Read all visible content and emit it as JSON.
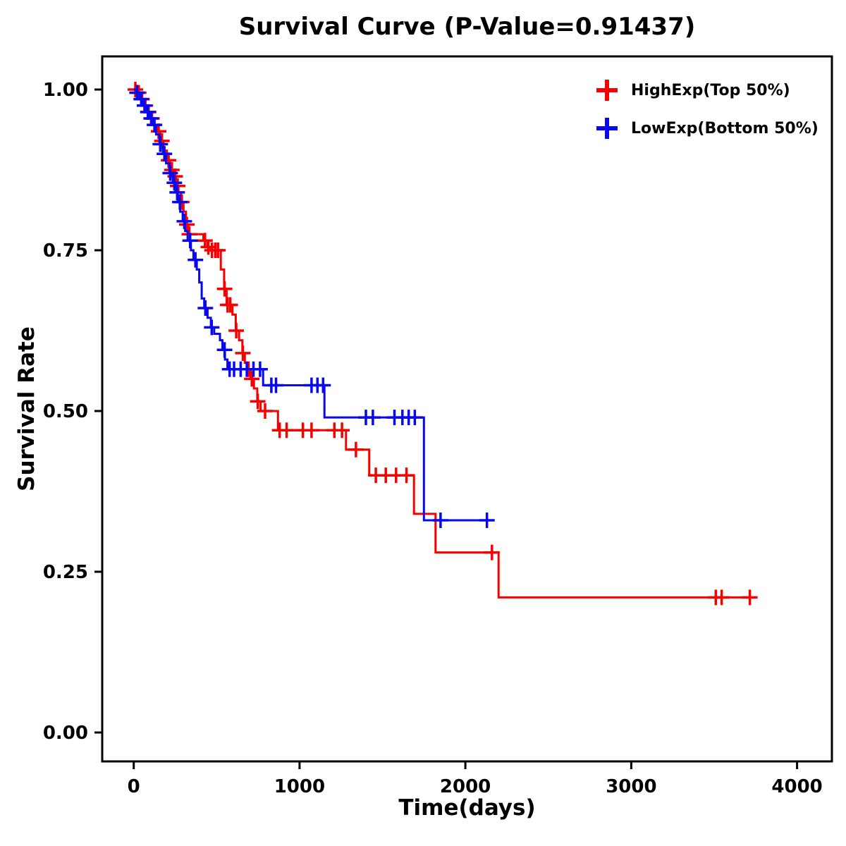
{
  "chart_data": {
    "type": "line",
    "subtype": "kaplan_meier_step",
    "title": "Survival Curve (P-Value=0.91437)",
    "xlabel": "Time(days)",
    "ylabel": "Survival Rate",
    "xlim": [
      -190,
      4210
    ],
    "ylim": [
      -0.045,
      1.0515
    ],
    "grid": false,
    "legend_position": "top-right",
    "xticks": [
      {
        "v": 0,
        "label": "0"
      },
      {
        "v": 1000,
        "label": "1000"
      },
      {
        "v": 2000,
        "label": "2000"
      },
      {
        "v": 3000,
        "label": "3000"
      },
      {
        "v": 4000,
        "label": "4000"
      }
    ],
    "yticks": [
      {
        "v": 0.0,
        "label": "0.00"
      },
      {
        "v": 0.25,
        "label": "0.25"
      },
      {
        "v": 0.5,
        "label": "0.50"
      },
      {
        "v": 0.75,
        "label": "0.75"
      },
      {
        "v": 1.0,
        "label": "1.00"
      }
    ],
    "series": [
      {
        "name": "HighExp(Top 50%)",
        "color": "#f80000",
        "end_time": 3720,
        "steps": [
          [
            0,
            1.0
          ],
          [
            20,
            0.995
          ],
          [
            40,
            0.985
          ],
          [
            60,
            0.975
          ],
          [
            80,
            0.965
          ],
          [
            100,
            0.955
          ],
          [
            120,
            0.945
          ],
          [
            140,
            0.935
          ],
          [
            160,
            0.92
          ],
          [
            180,
            0.905
          ],
          [
            200,
            0.89
          ],
          [
            220,
            0.875
          ],
          [
            240,
            0.865
          ],
          [
            255,
            0.85
          ],
          [
            270,
            0.84
          ],
          [
            285,
            0.825
          ],
          [
            300,
            0.81
          ],
          [
            315,
            0.79
          ],
          [
            330,
            0.775
          ],
          [
            420,
            0.765
          ],
          [
            445,
            0.755
          ],
          [
            465,
            0.75
          ],
          [
            525,
            0.72
          ],
          [
            545,
            0.69
          ],
          [
            560,
            0.665
          ],
          [
            595,
            0.65
          ],
          [
            615,
            0.625
          ],
          [
            635,
            0.61
          ],
          [
            655,
            0.59
          ],
          [
            670,
            0.575
          ],
          [
            690,
            0.565
          ],
          [
            705,
            0.55
          ],
          [
            725,
            0.535
          ],
          [
            745,
            0.515
          ],
          [
            765,
            0.5
          ],
          [
            870,
            0.47
          ],
          [
            1280,
            0.44
          ],
          [
            1420,
            0.4
          ],
          [
            1690,
            0.34
          ],
          [
            1820,
            0.28
          ],
          [
            2200,
            0.21
          ]
        ],
        "censor_times": [
          10,
          30,
          50,
          70,
          90,
          110,
          150,
          170,
          210,
          230,
          250,
          265,
          290,
          320,
          335,
          430,
          450,
          472,
          492,
          508,
          548,
          566,
          582,
          618,
          658,
          692,
          712,
          748,
          792,
          880,
          922,
          1020,
          1072,
          1210,
          1256,
          1340,
          1460,
          1520,
          1582,
          1645,
          2160,
          3510,
          3545,
          3715
        ]
      },
      {
        "name": "LowExp(Bottom 50%)",
        "color": "#0808f0",
        "end_time": 2150,
        "steps": [
          [
            0,
            1.0
          ],
          [
            15,
            0.995
          ],
          [
            35,
            0.985
          ],
          [
            55,
            0.975
          ],
          [
            75,
            0.965
          ],
          [
            95,
            0.955
          ],
          [
            115,
            0.945
          ],
          [
            135,
            0.93
          ],
          [
            155,
            0.915
          ],
          [
            175,
            0.9
          ],
          [
            195,
            0.885
          ],
          [
            215,
            0.87
          ],
          [
            235,
            0.855
          ],
          [
            250,
            0.84
          ],
          [
            265,
            0.825
          ],
          [
            280,
            0.81
          ],
          [
            295,
            0.795
          ],
          [
            310,
            0.78
          ],
          [
            325,
            0.765
          ],
          [
            345,
            0.75
          ],
          [
            360,
            0.735
          ],
          [
            380,
            0.72
          ],
          [
            395,
            0.7
          ],
          [
            410,
            0.675
          ],
          [
            425,
            0.66
          ],
          [
            445,
            0.645
          ],
          [
            465,
            0.63
          ],
          [
            485,
            0.62
          ],
          [
            520,
            0.61
          ],
          [
            535,
            0.595
          ],
          [
            550,
            0.58
          ],
          [
            565,
            0.565
          ],
          [
            780,
            0.54
          ],
          [
            1150,
            0.49
          ],
          [
            1750,
            0.33
          ]
        ],
        "censor_times": [
          20,
          45,
          65,
          85,
          105,
          125,
          160,
          185,
          220,
          245,
          262,
          278,
          305,
          340,
          372,
          432,
          470,
          548,
          578,
          605,
          645,
          682,
          722,
          762,
          830,
          858,
          1072,
          1108,
          1142,
          1400,
          1442,
          1572,
          1620,
          1658,
          1695,
          1850,
          2130
        ]
      }
    ]
  }
}
